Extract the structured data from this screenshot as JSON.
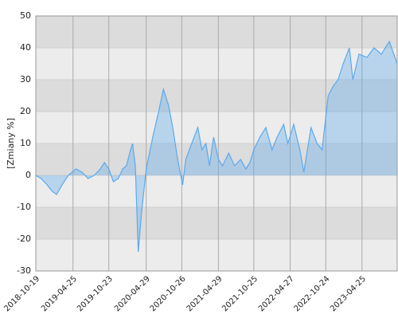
{
  "chart_data": {
    "type": "area",
    "y_label": "[Zmiany %]",
    "x": [
      "2018-10-19",
      "2018-11-15",
      "2018-12-15",
      "2019-01-10",
      "2019-02-01",
      "2019-03-01",
      "2019-04-01",
      "2019-05-10",
      "2019-06-10",
      "2019-07-10",
      "2019-08-10",
      "2019-09-10",
      "2019-10-01",
      "2019-10-23",
      "2019-11-15",
      "2019-12-10",
      "2020-01-01",
      "2020-01-20",
      "2020-02-10",
      "2020-02-20",
      "2020-03-05",
      "2020-03-20",
      "2020-04-05",
      "2020-04-29",
      "2020-06-01",
      "2020-07-01",
      "2020-07-25",
      "2020-08-20",
      "2020-09-10",
      "2020-10-05",
      "2020-10-30",
      "2020-11-15",
      "2020-12-15",
      "2021-01-15",
      "2021-02-05",
      "2021-02-25",
      "2021-03-15",
      "2021-04-05",
      "2021-04-29",
      "2021-05-20",
      "2021-06-20",
      "2021-07-20",
      "2021-08-20",
      "2021-09-15",
      "2021-10-05",
      "2021-10-25",
      "2021-11-25",
      "2021-12-25",
      "2022-01-25",
      "2022-02-20",
      "2022-03-25",
      "2022-04-15",
      "2022-05-15",
      "2022-06-15",
      "2022-07-05",
      "2022-08-10",
      "2022-09-10",
      "2022-10-05",
      "2022-11-05",
      "2022-12-01",
      "2022-12-25",
      "2023-01-20",
      "2023-02-20",
      "2023-03-10",
      "2023-04-10",
      "2023-05-20",
      "2023-06-25",
      "2023-08-01",
      "2023-09-10",
      "2023-10-20"
    ],
    "series": [
      {
        "color": "#5aa9ee",
        "values": [
          0,
          -1,
          -3,
          -5,
          -6,
          -3,
          0,
          2,
          1,
          -1,
          0,
          2,
          4,
          2,
          -2,
          -1,
          2,
          3,
          8,
          10,
          3,
          -24,
          -12,
          2,
          12,
          20,
          27,
          22,
          15,
          5,
          -3,
          5,
          10,
          15,
          8,
          10,
          3,
          12,
          5,
          3,
          7,
          3,
          5,
          2,
          4,
          8,
          12,
          15,
          8,
          12,
          16,
          10,
          16,
          8,
          1,
          15,
          10,
          8,
          25,
          28,
          30,
          35,
          40,
          30,
          38,
          37,
          40,
          38,
          42,
          35
        ]
      }
    ],
    "xlim": [
      "2018-10-19",
      "2023-10-20"
    ],
    "xticks": [
      "2018-10-19",
      "2019-04-25",
      "2019-10-23",
      "2020-04-29",
      "2020-10-26",
      "2021-04-29",
      "2021-10-25",
      "2022-04-27",
      "2022-10-24",
      "2023-04-25"
    ],
    "ylim": [
      -30,
      50
    ],
    "yticks": [
      -30,
      -20,
      -10,
      0,
      10,
      20,
      30,
      40,
      50
    ],
    "grid": true
  }
}
